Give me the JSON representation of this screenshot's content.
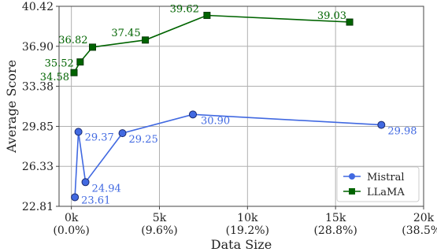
{
  "chart_data": {
    "type": "line",
    "xlabel": "Data Size",
    "ylabel": "Average Score",
    "xlim": [
      -700,
      20000
    ],
    "ylim": [
      22.81,
      40.42
    ],
    "x_ticks": [
      {
        "value": 0,
        "label": "0k",
        "sub": "(0.0%)"
      },
      {
        "value": 5000,
        "label": "5k",
        "sub": "(9.6%)"
      },
      {
        "value": 10000,
        "label": "10k",
        "sub": "(19.2%)"
      },
      {
        "value": 15000,
        "label": "15k",
        "sub": "(28.8%)"
      },
      {
        "value": 20000,
        "label": "20k",
        "sub": "(38.5%)"
      }
    ],
    "y_ticks": [
      "22.81",
      "26.33",
      "29.85",
      "33.38",
      "36.90",
      "40.42"
    ],
    "grid": true,
    "legend_position": "bottom-right",
    "series": [
      {
        "name": "Mistral",
        "color": "#4169e1",
        "marker": "circle",
        "x": [
          200,
          400,
          800,
          2900,
          6900,
          17600
        ],
        "y": [
          23.61,
          29.37,
          24.94,
          29.25,
          30.9,
          29.98
        ],
        "labels": [
          "23.61",
          "29.37",
          "24.94",
          "29.25",
          "30.90",
          "29.98"
        ]
      },
      {
        "name": "LLaMA",
        "color": "#006400",
        "marker": "square",
        "x": [
          150,
          500,
          1200,
          4200,
          7700,
          15800
        ],
        "y": [
          34.58,
          35.52,
          36.82,
          37.45,
          39.62,
          39.03
        ],
        "labels": [
          "34.58",
          "35.52",
          "36.82",
          "37.45",
          "39.62",
          "39.03"
        ]
      }
    ]
  }
}
